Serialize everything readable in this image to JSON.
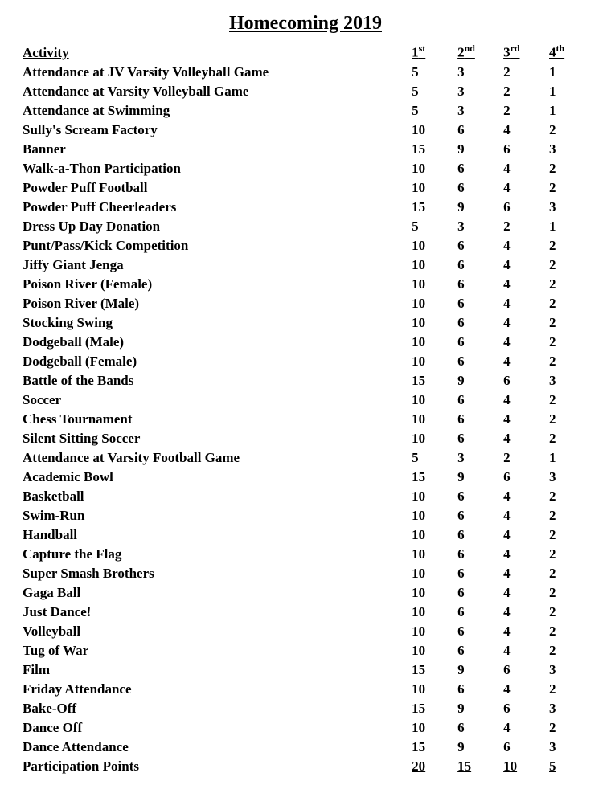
{
  "title": "Homecoming 2019",
  "columns": {
    "activity": "Activity",
    "p1": "1",
    "p1_sup": "st",
    "p2": "2",
    "p2_sup": "nd",
    "p3": "3",
    "p3_sup": "rd",
    "p4": "4",
    "p4_sup": "th"
  },
  "rows": [
    {
      "activity": "Attendance at JV Varsity Volleyball Game",
      "p1": "5",
      "p2": "3",
      "p3": "2",
      "p4": "1"
    },
    {
      "activity": "Attendance at Varsity Volleyball Game",
      "p1": "5",
      "p2": "3",
      "p3": "2",
      "p4": "1"
    },
    {
      "activity": "Attendance at Swimming",
      "p1": "5",
      "p2": "3",
      "p3": "2",
      "p4": "1"
    },
    {
      "activity": "Sully's Scream Factory",
      "p1": "10",
      "p2": "6",
      "p3": "4",
      "p4": "2"
    },
    {
      "activity": "Banner",
      "p1": "15",
      "p2": "9",
      "p3": "6",
      "p4": "3"
    },
    {
      "activity": "Walk-a-Thon Participation",
      "p1": "10",
      "p2": "6",
      "p3": "4",
      "p4": "2"
    },
    {
      "activity": "Powder Puff Football",
      "p1": "10",
      "p2": "6",
      "p3": "4",
      "p4": "2"
    },
    {
      "activity": "Powder Puff Cheerleaders",
      "p1": "15",
      "p2": "9",
      "p3": "6",
      "p4": "3"
    },
    {
      "activity": "Dress Up Day Donation",
      "p1": "5",
      "p2": "3",
      "p3": "2",
      "p4": "1"
    },
    {
      "activity": "Punt/Pass/Kick Competition",
      "p1": "10",
      "p2": "6",
      "p3": "4",
      "p4": "2"
    },
    {
      "activity": "Jiffy Giant Jenga",
      "p1": "10",
      "p2": "6",
      "p3": "4",
      "p4": "2"
    },
    {
      "activity": "Poison River (Female)",
      "p1": "10",
      "p2": "6",
      "p3": "4",
      "p4": "2"
    },
    {
      "activity": "Poison River (Male)",
      "p1": "10",
      "p2": "6",
      "p3": "4",
      "p4": "2"
    },
    {
      "activity": "Stocking Swing",
      "p1": "10",
      "p2": "6",
      "p3": "4",
      "p4": "2"
    },
    {
      "activity": "Dodgeball (Male)",
      "p1": "10",
      "p2": "6",
      "p3": "4",
      "p4": "2"
    },
    {
      "activity": "Dodgeball (Female)",
      "p1": "10",
      "p2": "6",
      "p3": "4",
      "p4": "2"
    },
    {
      "activity": "Battle of the Bands",
      "p1": "15",
      "p2": "9",
      "p3": "6",
      "p4": "3"
    },
    {
      "activity": "Soccer",
      "p1": "10",
      "p2": "6",
      "p3": "4",
      "p4": "2"
    },
    {
      "activity": "Chess Tournament",
      "p1": "10",
      "p2": "6",
      "p3": "4",
      "p4": "2"
    },
    {
      "activity": "Silent Sitting Soccer",
      "p1": "10",
      "p2": "6",
      "p3": "4",
      "p4": "2"
    },
    {
      "activity": "Attendance at Varsity Football Game",
      "p1": "5",
      "p2": "3",
      "p3": "2",
      "p4": "1"
    },
    {
      "activity": "Academic Bowl",
      "p1": "15",
      "p2": "9",
      "p3": "6",
      "p4": "3"
    },
    {
      "activity": "Basketball",
      "p1": "10",
      "p2": "6",
      "p3": "4",
      "p4": "2"
    },
    {
      "activity": "Swim-Run",
      "p1": "10",
      "p2": "6",
      "p3": "4",
      "p4": "2"
    },
    {
      "activity": "Handball",
      "p1": "10",
      "p2": "6",
      "p3": "4",
      "p4": "2"
    },
    {
      "activity": "Capture the Flag",
      "p1": "10",
      "p2": "6",
      "p3": "4",
      "p4": "2"
    },
    {
      "activity": "Super Smash Brothers",
      "p1": "10",
      "p2": "6",
      "p3": "4",
      "p4": "2"
    },
    {
      "activity": "Gaga Ball",
      "p1": "10",
      "p2": "6",
      "p3": "4",
      "p4": "2"
    },
    {
      "activity": "Just Dance!",
      "p1": "10",
      "p2": "6",
      "p3": "4",
      "p4": "2"
    },
    {
      "activity": "Volleyball",
      "p1": "10",
      "p2": "6",
      "p3": "4",
      "p4": "2"
    },
    {
      "activity": "Tug of War",
      "p1": "10",
      "p2": "6",
      "p3": "4",
      "p4": "2"
    },
    {
      "activity": "Film",
      "p1": "15",
      "p2": "9",
      "p3": "6",
      "p4": "3"
    },
    {
      "activity": "Friday Attendance",
      "p1": "10",
      "p2": "6",
      "p3": "4",
      "p4": "2"
    },
    {
      "activity": "Bake-Off",
      "p1": "15",
      "p2": "9",
      "p3": "6",
      "p4": "3"
    },
    {
      "activity": "Dance Off",
      "p1": "10",
      "p2": "6",
      "p3": "4",
      "p4": "2"
    },
    {
      "activity": "Dance Attendance",
      "p1": "15",
      "p2": "9",
      "p3": "6",
      "p4": "3"
    },
    {
      "activity": "Participation Points",
      "p1": "20",
      "p2": "15",
      "p3": "10",
      "p4": "5"
    }
  ],
  "style": {
    "background_color": "#ffffff",
    "text_color": "#000000",
    "title_fontsize": 24,
    "body_fontsize": 17,
    "font_family": "Georgia"
  }
}
